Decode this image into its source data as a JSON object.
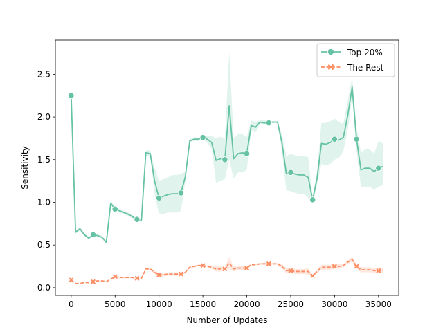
{
  "chart_data": {
    "type": "line",
    "xlabel": "Number of Updates",
    "ylabel": "Sensitivity",
    "xlim": [
      -1800,
      37300
    ],
    "ylim": [
      -0.09,
      2.9
    ],
    "xticks": [
      0,
      5000,
      10000,
      15000,
      20000,
      25000,
      30000,
      35000
    ],
    "xtick_labels": [
      "0",
      "5000",
      "10000",
      "15000",
      "20000",
      "25000",
      "30000",
      "35000"
    ],
    "yticks": [
      0.0,
      0.5,
      1.0,
      1.5,
      2.0,
      2.5
    ],
    "ytick_labels": [
      "0.0",
      "0.5",
      "1.0",
      "1.5",
      "2.0",
      "2.5"
    ],
    "grid": false,
    "legend_position": "top-right",
    "colors": {
      "top": "#66c2a5",
      "rest": "#fc8d62"
    },
    "series": [
      {
        "name": "Top 20%",
        "line_style": "solid",
        "marker": "circle",
        "x": [
          0,
          500,
          1000,
          1500,
          2000,
          2500,
          3000,
          3500,
          4000,
          4500,
          5000,
          5500,
          6000,
          6500,
          7000,
          7500,
          8000,
          8500,
          9000,
          9500,
          10000,
          10500,
          11000,
          11500,
          12000,
          12500,
          13000,
          13500,
          14000,
          14500,
          15000,
          15500,
          16000,
          16500,
          17000,
          17500,
          18000,
          18500,
          19000,
          19500,
          20000,
          20500,
          21000,
          21500,
          22000,
          22500,
          23000,
          23500,
          24000,
          24500,
          25000,
          25500,
          26000,
          26500,
          27000,
          27500,
          28000,
          28500,
          29000,
          29500,
          30000,
          30500,
          31000,
          31500,
          32000,
          32500,
          33000,
          33500,
          34000,
          34500,
          35000,
          35500
        ],
        "values": [
          2.25,
          0.65,
          0.69,
          0.62,
          0.58,
          0.62,
          0.61,
          0.59,
          0.53,
          0.99,
          0.92,
          0.9,
          0.88,
          0.86,
          0.83,
          0.8,
          0.79,
          1.58,
          1.57,
          1.25,
          1.05,
          1.07,
          1.09,
          1.1,
          1.1,
          1.11,
          1.3,
          1.72,
          1.74,
          1.74,
          1.76,
          1.74,
          1.7,
          1.49,
          1.51,
          1.5,
          2.13,
          1.51,
          1.57,
          1.58,
          1.57,
          1.9,
          1.88,
          1.94,
          1.93,
          1.93,
          1.94,
          1.94,
          1.7,
          1.34,
          1.35,
          1.33,
          1.32,
          1.32,
          1.29,
          1.03,
          1.28,
          1.69,
          1.68,
          1.7,
          1.74,
          1.73,
          1.76,
          2.02,
          2.35,
          1.74,
          1.38,
          1.4,
          1.4,
          1.36,
          1.4,
          1.42
        ],
        "lower": [
          2.25,
          0.63,
          0.67,
          0.6,
          0.57,
          0.6,
          0.6,
          0.58,
          0.52,
          0.96,
          0.9,
          0.88,
          0.86,
          0.84,
          0.81,
          0.78,
          0.77,
          1.55,
          1.53,
          1.1,
          0.86,
          0.86,
          0.88,
          0.88,
          0.88,
          0.9,
          1.25,
          1.7,
          1.72,
          1.72,
          1.74,
          1.7,
          1.62,
          1.23,
          1.25,
          1.27,
          1.5,
          1.28,
          1.35,
          1.35,
          1.38,
          1.84,
          1.82,
          1.91,
          1.91,
          1.92,
          1.93,
          1.93,
          1.6,
          1.14,
          1.13,
          1.11,
          1.1,
          1.1,
          1.05,
          1.0,
          1.2,
          1.45,
          1.43,
          1.45,
          1.5,
          1.52,
          1.6,
          1.85,
          2.23,
          1.6,
          1.18,
          1.18,
          1.18,
          1.15,
          1.18,
          1.2
        ],
        "upper": [
          2.25,
          0.67,
          0.71,
          0.64,
          0.6,
          0.64,
          0.63,
          0.61,
          0.55,
          1.02,
          0.94,
          0.92,
          0.9,
          0.88,
          0.85,
          0.82,
          0.81,
          1.61,
          1.61,
          1.4,
          1.25,
          1.27,
          1.29,
          1.32,
          1.32,
          1.33,
          1.36,
          1.74,
          1.76,
          1.76,
          1.78,
          1.78,
          1.78,
          1.75,
          1.77,
          1.74,
          2.76,
          1.75,
          1.8,
          1.8,
          1.76,
          1.96,
          1.94,
          1.96,
          1.96,
          1.95,
          1.95,
          1.95,
          1.8,
          1.54,
          1.57,
          1.55,
          1.54,
          1.54,
          1.53,
          1.06,
          1.36,
          1.93,
          1.93,
          1.95,
          1.98,
          1.94,
          1.92,
          2.19,
          2.47,
          1.88,
          1.58,
          1.62,
          1.62,
          1.57,
          1.72,
          1.69
        ],
        "marker_x": [
          0,
          2500,
          5000,
          7500,
          10000,
          12500,
          15000,
          17500,
          20000,
          22500,
          25000,
          27500,
          30000,
          32500,
          35000
        ]
      },
      {
        "name": "The Rest",
        "line_style": "dashed",
        "marker": "x",
        "x": [
          0,
          500,
          1000,
          1500,
          2000,
          2500,
          3000,
          3500,
          4000,
          4500,
          5000,
          5500,
          6000,
          6500,
          7000,
          7500,
          8000,
          8500,
          9000,
          9500,
          10000,
          10500,
          11000,
          11500,
          12000,
          12500,
          13000,
          13500,
          14000,
          14500,
          15000,
          15500,
          16000,
          16500,
          17000,
          17500,
          18000,
          18500,
          19000,
          19500,
          20000,
          20500,
          21000,
          21500,
          22000,
          22500,
          23000,
          23500,
          24000,
          24500,
          25000,
          25500,
          26000,
          26500,
          27000,
          27500,
          28000,
          28500,
          29000,
          29500,
          30000,
          30500,
          31000,
          31500,
          32000,
          32500,
          33000,
          33500,
          34000,
          34500,
          35000,
          35500
        ],
        "values": [
          0.09,
          0.05,
          0.05,
          0.06,
          0.06,
          0.07,
          0.08,
          0.08,
          0.07,
          0.1,
          0.13,
          0.12,
          0.12,
          0.12,
          0.12,
          0.11,
          0.11,
          0.22,
          0.22,
          0.18,
          0.15,
          0.15,
          0.16,
          0.16,
          0.16,
          0.16,
          0.18,
          0.24,
          0.25,
          0.26,
          0.26,
          0.25,
          0.24,
          0.22,
          0.22,
          0.22,
          0.29,
          0.22,
          0.23,
          0.23,
          0.23,
          0.27,
          0.27,
          0.28,
          0.28,
          0.28,
          0.28,
          0.28,
          0.25,
          0.2,
          0.2,
          0.19,
          0.19,
          0.19,
          0.19,
          0.14,
          0.19,
          0.24,
          0.24,
          0.24,
          0.25,
          0.25,
          0.26,
          0.3,
          0.33,
          0.25,
          0.21,
          0.21,
          0.21,
          0.2,
          0.2,
          0.2
        ],
        "lower": [
          0.09,
          0.05,
          0.05,
          0.06,
          0.06,
          0.07,
          0.08,
          0.08,
          0.07,
          0.1,
          0.12,
          0.11,
          0.11,
          0.11,
          0.11,
          0.1,
          0.1,
          0.21,
          0.21,
          0.16,
          0.13,
          0.13,
          0.14,
          0.14,
          0.14,
          0.14,
          0.17,
          0.23,
          0.24,
          0.25,
          0.25,
          0.24,
          0.22,
          0.19,
          0.19,
          0.2,
          0.22,
          0.19,
          0.21,
          0.21,
          0.21,
          0.26,
          0.26,
          0.27,
          0.27,
          0.27,
          0.27,
          0.27,
          0.22,
          0.17,
          0.17,
          0.16,
          0.16,
          0.16,
          0.15,
          0.13,
          0.17,
          0.21,
          0.21,
          0.21,
          0.22,
          0.22,
          0.24,
          0.28,
          0.3,
          0.23,
          0.18,
          0.18,
          0.18,
          0.17,
          0.17,
          0.17
        ],
        "upper": [
          0.09,
          0.05,
          0.05,
          0.06,
          0.06,
          0.07,
          0.08,
          0.08,
          0.07,
          0.1,
          0.14,
          0.13,
          0.13,
          0.13,
          0.13,
          0.12,
          0.12,
          0.23,
          0.23,
          0.2,
          0.17,
          0.17,
          0.18,
          0.18,
          0.18,
          0.18,
          0.19,
          0.25,
          0.26,
          0.27,
          0.27,
          0.26,
          0.26,
          0.25,
          0.25,
          0.24,
          0.36,
          0.25,
          0.25,
          0.25,
          0.25,
          0.28,
          0.28,
          0.29,
          0.29,
          0.29,
          0.29,
          0.29,
          0.28,
          0.23,
          0.23,
          0.22,
          0.22,
          0.22,
          0.23,
          0.15,
          0.21,
          0.27,
          0.27,
          0.27,
          0.28,
          0.28,
          0.28,
          0.32,
          0.36,
          0.27,
          0.24,
          0.24,
          0.24,
          0.23,
          0.23,
          0.23
        ],
        "marker_x": [
          0,
          2500,
          5000,
          7500,
          10000,
          12500,
          15000,
          17500,
          20000,
          22500,
          25000,
          27500,
          30000,
          32500,
          35000
        ]
      }
    ]
  }
}
